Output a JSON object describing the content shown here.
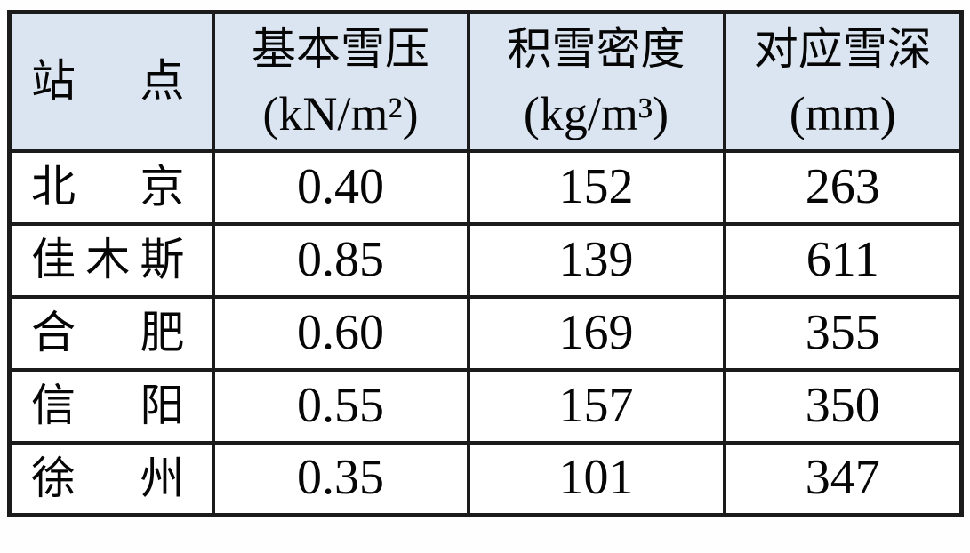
{
  "table": {
    "columns": [
      {
        "label": "站　点",
        "unit": ""
      },
      {
        "label": "基本雪压",
        "unit": "(kN/m²)"
      },
      {
        "label": "积雪密度",
        "unit": "(kg/m³)"
      },
      {
        "label": "对应雪深",
        "unit": "(mm)"
      }
    ],
    "rows": [
      {
        "station": "北　京",
        "pressure": "0.40",
        "density": "152",
        "depth": "263"
      },
      {
        "station": "佳木斯",
        "pressure": "0.85",
        "density": "139",
        "depth": "611"
      },
      {
        "station": "合　肥",
        "pressure": "0.60",
        "density": "169",
        "depth": "355"
      },
      {
        "station": "信　阳",
        "pressure": "0.55",
        "density": "157",
        "depth": "350"
      },
      {
        "station": "徐　州",
        "pressure": "0.35",
        "density": "101",
        "depth": "347"
      }
    ],
    "styles": {
      "header_bg": "#dbe5f1",
      "border_color": "#1b1b1b",
      "text_color": "#060606"
    }
  }
}
